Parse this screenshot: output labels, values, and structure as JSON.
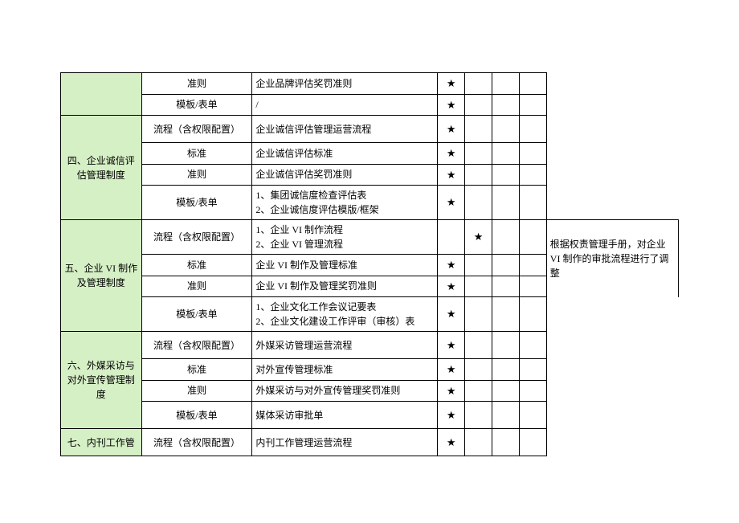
{
  "star": "★",
  "colors": {
    "section_bg": "#d6f0c6",
    "border": "#000000",
    "bg": "#ffffff"
  },
  "remark_vi": "根据权责管理手册，对企业 VI 制作的审批流程进行了调整",
  "rows": [
    {
      "section": "",
      "type": "准则",
      "content": "企业品牌评估奖罚准则",
      "s_col": 0,
      "section_span": 2,
      "green": true
    },
    {
      "type": "模板/表单",
      "content": "/",
      "s_col": 0
    },
    {
      "section": "四、企业诚信评估管理制度",
      "type": "流程（含权限配置）",
      "content": "企业诚信评估管理运营流程",
      "s_col": 0,
      "section_span": 4,
      "green": true,
      "tall": true
    },
    {
      "type": "标准",
      "content": "企业诚信评估标准",
      "s_col": 0
    },
    {
      "type": "准则",
      "content": "企业诚信评估奖罚准则",
      "s_col": 0
    },
    {
      "type": "模板/表单",
      "content": "1、集团诚信度检查评估表\n2、企业诚信度评估模版/框架",
      "s_col": 0
    },
    {
      "section": "五、企业 VI 制作及管理制度",
      "type": "流程（含权限配置）",
      "content": "1、企业 VI 制作流程\n2、企业 VI 管理流程",
      "s_col": 1,
      "section_span": 4,
      "green": true,
      "remark_span": 4
    },
    {
      "type": "标准",
      "content": "企业 VI 制作及管理标准",
      "s_col": 0
    },
    {
      "type": "准则",
      "content": "企业 VI 制作及管理奖罚准则",
      "s_col": 0
    },
    {
      "type": "模板/表单",
      "content": "1、企业文化工作会议记要表\n2、企业文化建设工作评审（审核）表",
      "s_col": 0
    },
    {
      "section": "六、外媒采访与对外宣传管理制度",
      "type": "流程（含权限配置）",
      "content": "外媒采访管理运营流程",
      "s_col": 0,
      "section_span": 4,
      "green": true,
      "tall": true
    },
    {
      "type": "标准",
      "content": "对外宣传管理标准",
      "s_col": 0
    },
    {
      "type": "准则",
      "content": "外媒采访与对外宣传管理奖罚准则",
      "s_col": 0
    },
    {
      "type": "模板/表单",
      "content": "媒体采访审批单",
      "s_col": 0,
      "tall": true
    },
    {
      "section": "七、内刊工作管",
      "type": "流程（含权限配置）",
      "content": "内刊工作管理运营流程",
      "s_col": 0,
      "section_span": 1,
      "green": true,
      "tall": true
    }
  ]
}
